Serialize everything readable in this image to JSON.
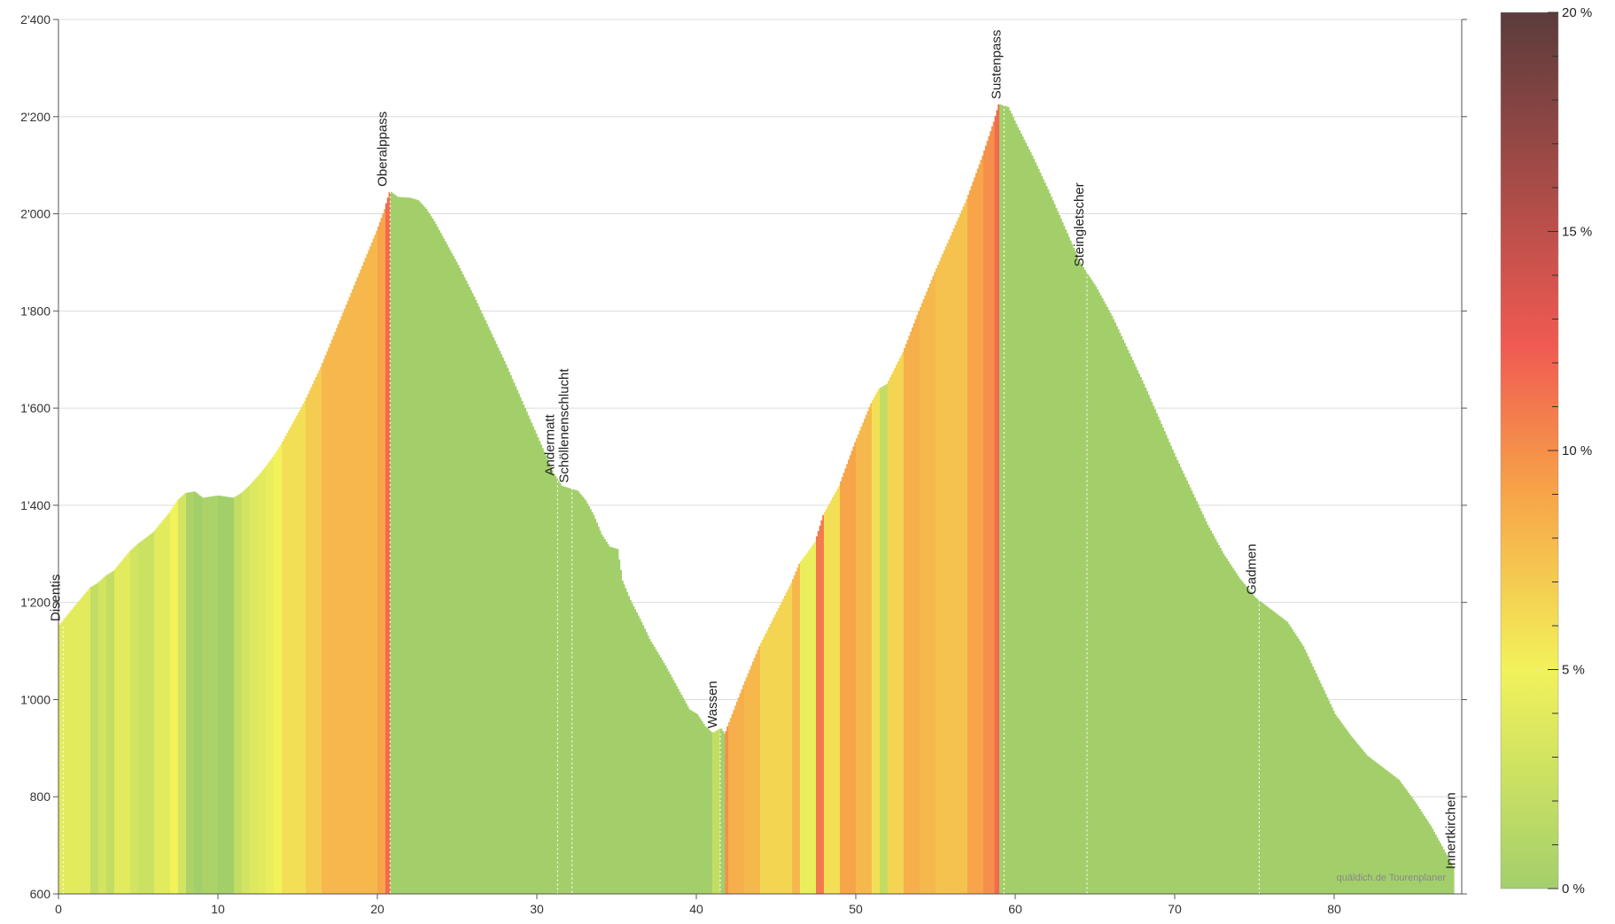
{
  "chart_data": {
    "type": "area",
    "xlim": [
      0,
      88
    ],
    "ylim": [
      600,
      2400
    ],
    "x_ticks": [
      0,
      10,
      20,
      30,
      40,
      50,
      60,
      70,
      80
    ],
    "y_ticks": [
      600,
      800,
      1000,
      1200,
      1400,
      1600,
      1800,
      2000,
      2200,
      2400
    ],
    "y_tick_labels": [
      "600",
      "800",
      "1'000",
      "1'200",
      "1'400",
      "1'600",
      "1'800",
      "2'000",
      "2'200",
      "2'400"
    ],
    "grid": true,
    "profile": [
      [
        0,
        1150
      ],
      [
        0.5,
        1170
      ],
      [
        1,
        1190
      ],
      [
        1.5,
        1210
      ],
      [
        2,
        1230
      ],
      [
        2.5,
        1240
      ],
      [
        3,
        1255
      ],
      [
        3.5,
        1265
      ],
      [
        4,
        1285
      ],
      [
        4.5,
        1305
      ],
      [
        5,
        1320
      ],
      [
        6,
        1345
      ],
      [
        7,
        1385
      ],
      [
        7.5,
        1410
      ],
      [
        8,
        1425
      ],
      [
        8.5,
        1428
      ],
      [
        9,
        1415
      ],
      [
        10,
        1420
      ],
      [
        11,
        1415
      ],
      [
        11.5,
        1425
      ],
      [
        12,
        1440
      ],
      [
        12.5,
        1458
      ],
      [
        13,
        1478
      ],
      [
        13.5,
        1500
      ],
      [
        14,
        1525
      ],
      [
        14.5,
        1555
      ],
      [
        15,
        1585
      ],
      [
        15.5,
        1615
      ],
      [
        16,
        1650
      ],
      [
        16.5,
        1685
      ],
      [
        17,
        1725
      ],
      [
        17.5,
        1765
      ],
      [
        18,
        1805
      ],
      [
        18.5,
        1845
      ],
      [
        19,
        1885
      ],
      [
        19.5,
        1925
      ],
      [
        20,
        1965
      ],
      [
        20.5,
        2010
      ],
      [
        20.8,
        2045
      ],
      [
        21.2,
        2035
      ],
      [
        22,
        2033
      ],
      [
        22.5,
        2028
      ],
      [
        23,
        2010
      ],
      [
        23.5,
        1985
      ],
      [
        24,
        1955
      ],
      [
        25,
        1895
      ],
      [
        26,
        1830
      ],
      [
        27,
        1760
      ],
      [
        28,
        1690
      ],
      [
        29,
        1615
      ],
      [
        30,
        1540
      ],
      [
        31,
        1465
      ],
      [
        31.5,
        1440
      ],
      [
        32.5,
        1430
      ],
      [
        33,
        1410
      ],
      [
        33.5,
        1380
      ],
      [
        34,
        1340
      ],
      [
        34.5,
        1315
      ],
      [
        35,
        1310
      ],
      [
        35.3,
        1245
      ],
      [
        35.8,
        1205
      ],
      [
        36.5,
        1160
      ],
      [
        37,
        1125
      ],
      [
        38,
        1070
      ],
      [
        39,
        1010
      ],
      [
        39.5,
        980
      ],
      [
        40,
        970
      ],
      [
        40.5,
        945
      ],
      [
        41,
        930
      ],
      [
        41.5,
        940
      ],
      [
        41.8,
        925
      ],
      [
        42,
        945
      ],
      [
        43,
        1030
      ],
      [
        44,
        1110
      ],
      [
        45,
        1175
      ],
      [
        46,
        1240
      ],
      [
        46.5,
        1280
      ],
      [
        47.5,
        1325
      ],
      [
        48,
        1380
      ],
      [
        49,
        1440
      ],
      [
        50,
        1530
      ],
      [
        50.5,
        1570
      ],
      [
        51,
        1610
      ],
      [
        51.5,
        1640
      ],
      [
        52,
        1650
      ],
      [
        53,
        1715
      ],
      [
        54,
        1800
      ],
      [
        55,
        1880
      ],
      [
        56,
        1955
      ],
      [
        57,
        2030
      ],
      [
        58,
        2120
      ],
      [
        58.7,
        2190
      ],
      [
        59,
        2225
      ],
      [
        59.5,
        2220
      ],
      [
        60,
        2185
      ],
      [
        61,
        2120
      ],
      [
        62,
        2050
      ],
      [
        63,
        1975
      ],
      [
        64,
        1900
      ],
      [
        65,
        1850
      ],
      [
        66,
        1790
      ],
      [
        67,
        1720
      ],
      [
        68,
        1650
      ],
      [
        69,
        1575
      ],
      [
        70,
        1500
      ],
      [
        71,
        1430
      ],
      [
        72,
        1360
      ],
      [
        73,
        1300
      ],
      [
        74,
        1250
      ],
      [
        75,
        1210
      ],
      [
        76,
        1185
      ],
      [
        77,
        1160
      ],
      [
        78,
        1110
      ],
      [
        79,
        1040
      ],
      [
        80,
        970
      ],
      [
        81,
        925
      ],
      [
        82,
        885
      ],
      [
        83,
        860
      ],
      [
        84,
        835
      ],
      [
        85,
        790
      ],
      [
        86,
        740
      ],
      [
        87,
        680
      ],
      [
        87.5,
        650
      ]
    ],
    "waypoints": [
      {
        "label": "Disentis",
        "km": 0.3,
        "elev": 1150
      },
      {
        "label": "Oberalppass",
        "km": 20.8,
        "elev": 2045
      },
      {
        "label": "Andermatt",
        "km": 31.3,
        "elev": 1450
      },
      {
        "label": "Schöllenenschlucht",
        "km": 32.2,
        "elev": 1435
      },
      {
        "label": "Wassen",
        "km": 41.5,
        "elev": 930
      },
      {
        "label": "Sustenpass",
        "km": 59.3,
        "elev": 2225
      },
      {
        "label": "Steingletscher",
        "km": 64.5,
        "elev": 1880
      },
      {
        "label": "Gadmen",
        "km": 75.3,
        "elev": 1205
      },
      {
        "label": "Innertkirchen",
        "km": 87.8,
        "elev": 640
      }
    ],
    "colorbar": {
      "min": 0,
      "max": 20,
      "ticks": [
        0,
        5,
        10,
        15,
        20
      ],
      "tick_labels": [
        "0 %",
        "5 %",
        "10 %",
        "15 %",
        "20 %"
      ],
      "stops": [
        "#a3cf6b",
        "#f2f25a",
        "#f7a548",
        "#f05a52",
        "#5a3c3c"
      ]
    },
    "credit": "quäldich.de Tourenplaner"
  }
}
